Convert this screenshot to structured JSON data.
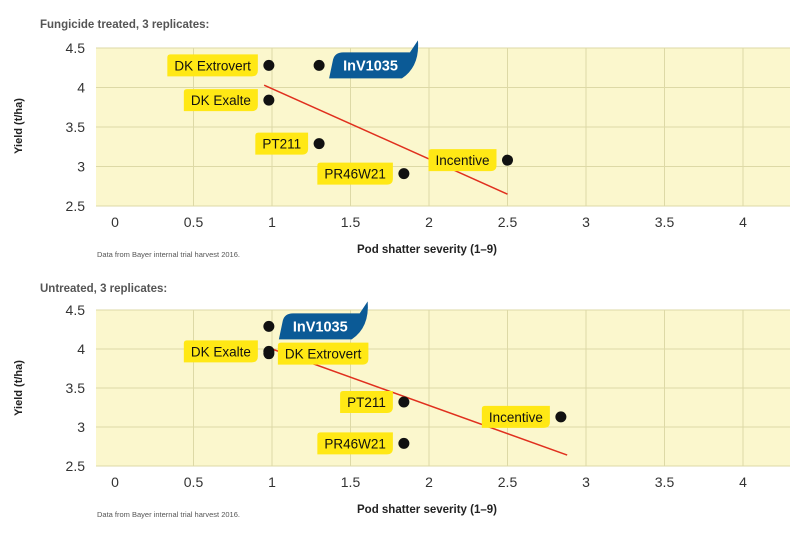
{
  "colors": {
    "plot_bg": "#fbf7cd",
    "grid": "#ddd9a6",
    "trend": "#e0301e",
    "point": "#111111",
    "label_bg": "#ffe815",
    "highlight_bg": "#0b5a96",
    "highlight_text": "#ffffff"
  },
  "chart_data": [
    {
      "type": "scatter",
      "header": "Fungicide treated, 3 replicates:",
      "xlabel": "Pod shatter severity (1–9)",
      "ylabel": "Yield (t/ha)",
      "xlim": [
        0,
        4
      ],
      "ylim": [
        2.5,
        4.5
      ],
      "xticks": [
        "0",
        "0.5",
        "1",
        "1.5",
        "2",
        "2.5",
        "3",
        "3.5",
        "4"
      ],
      "yticks": [
        "2.5",
        "3",
        "3.5",
        "4",
        "4.5"
      ],
      "grid": true,
      "note": "Data from Bayer internal trial harvest 2016.",
      "points": [
        {
          "label": "DK Extrovert",
          "x": 0.98,
          "y": 4.28,
          "label_side": "left",
          "highlight": false
        },
        {
          "label": "InV1035",
          "x": 1.3,
          "y": 4.28,
          "label_side": "right",
          "highlight": true
        },
        {
          "label": "DK Exalte",
          "x": 0.98,
          "y": 3.84,
          "label_side": "left",
          "highlight": false
        },
        {
          "label": "PT211",
          "x": 1.3,
          "y": 3.29,
          "label_side": "left",
          "highlight": false
        },
        {
          "label": "Incentive",
          "x": 2.5,
          "y": 3.08,
          "label_side": "left",
          "highlight": false
        },
        {
          "label": "PR46W21",
          "x": 1.84,
          "y": 2.91,
          "label_side": "left",
          "highlight": false
        }
      ],
      "trendline": {
        "x": [
          0.95,
          2.5
        ],
        "y": [
          4.03,
          2.65
        ]
      }
    },
    {
      "type": "scatter",
      "header": "Untreated, 3 replicates:",
      "xlabel": "Pod shatter severity (1–9)",
      "ylabel": "Yield (t/ha)",
      "xlim": [
        0,
        4
      ],
      "ylim": [
        2.5,
        4.5
      ],
      "xticks": [
        "0",
        "0.5",
        "1",
        "1.5",
        "2",
        "2.5",
        "3",
        "3.5",
        "4"
      ],
      "yticks": [
        "2.5",
        "3",
        "3.5",
        "4",
        "4.5"
      ],
      "grid": true,
      "note": "Data from Bayer internal trial harvest 2016.",
      "points": [
        {
          "label": "InV1035",
          "x": 0.98,
          "y": 4.29,
          "label_side": "right",
          "highlight": true
        },
        {
          "label": "DK Exalte",
          "x": 0.98,
          "y": 3.97,
          "label_side": "left",
          "highlight": false
        },
        {
          "label": "DK Extrovert",
          "x": 0.98,
          "y": 3.94,
          "label_side": "right",
          "highlight": false
        },
        {
          "label": "PT211",
          "x": 1.84,
          "y": 3.32,
          "label_side": "left",
          "highlight": false
        },
        {
          "label": "Incentive",
          "x": 2.84,
          "y": 3.13,
          "label_side": "left",
          "highlight": false
        },
        {
          "label": "PR46W21",
          "x": 1.84,
          "y": 2.79,
          "label_side": "left",
          "highlight": false
        }
      ],
      "trendline": {
        "x": [
          1.0,
          2.88
        ],
        "y": [
          4.0,
          2.64
        ]
      }
    }
  ]
}
